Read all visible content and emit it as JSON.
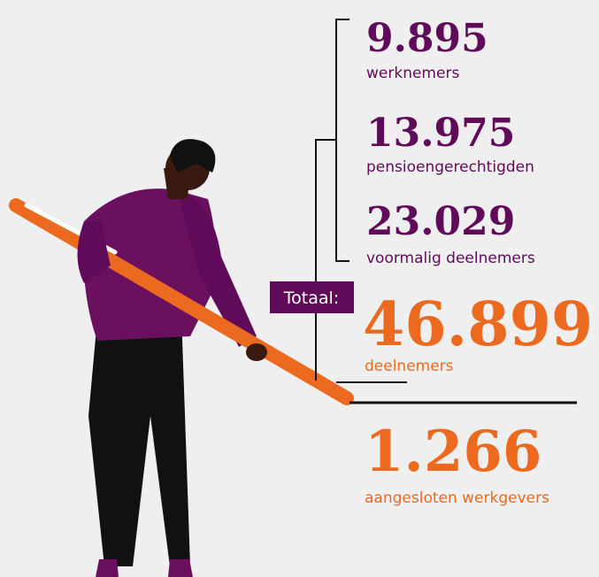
{
  "stats": [
    {
      "value": "9.895",
      "label": "werknemers"
    },
    {
      "value": "13.975",
      "label": "pensioengerechtigden"
    },
    {
      "value": "23.029",
      "label": "voormalig deelnemers"
    }
  ],
  "total": {
    "tag": "Totaal:",
    "value": "46.899",
    "label": "deelnemers"
  },
  "employers": {
    "value": "1.266",
    "label": "aangesloten werkgevers"
  }
}
